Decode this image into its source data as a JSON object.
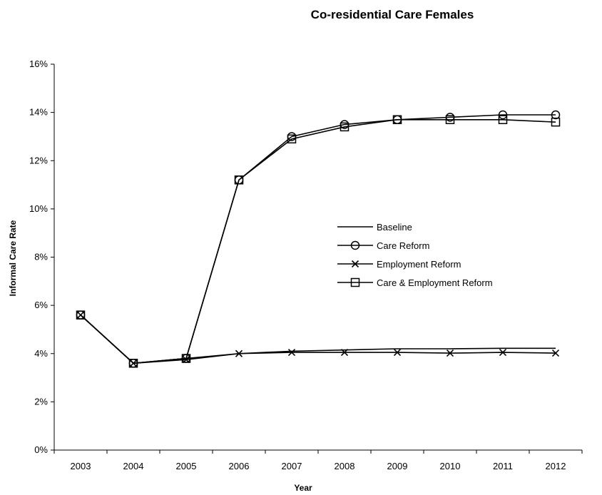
{
  "chart_data": {
    "type": "line",
    "title": "Co-residential Care Females",
    "xlabel": "Year",
    "ylabel": "Informal Care Rate",
    "categories": [
      "2003",
      "2004",
      "2005",
      "2006",
      "2007",
      "2008",
      "2009",
      "2010",
      "2011",
      "2012"
    ],
    "y_ticks": [
      "0%",
      "2%",
      "4%",
      "6%",
      "8%",
      "10%",
      "12%",
      "14%",
      "16%"
    ],
    "ylim": [
      0,
      16
    ],
    "grid": false,
    "legend_position": "center-right",
    "line_color": "#000000",
    "series": [
      {
        "name": "Baseline",
        "marker": "none",
        "values": [
          5.6,
          3.6,
          3.8,
          4.0,
          4.1,
          4.15,
          4.2,
          4.2,
          4.22,
          4.22
        ]
      },
      {
        "name": "Care Reform",
        "marker": "circle",
        "values": [
          5.6,
          3.6,
          3.8,
          11.2,
          13.0,
          13.5,
          13.7,
          13.8,
          13.9,
          13.9
        ]
      },
      {
        "name": "Employment Reform",
        "marker": "x",
        "values": [
          5.6,
          3.6,
          3.75,
          4.0,
          4.05,
          4.05,
          4.05,
          4.02,
          4.05,
          4.02
        ]
      },
      {
        "name": "Care & Employment Reform",
        "marker": "square",
        "values": [
          5.6,
          3.6,
          3.8,
          11.2,
          12.9,
          13.4,
          13.7,
          13.7,
          13.7,
          13.6
        ]
      }
    ]
  }
}
